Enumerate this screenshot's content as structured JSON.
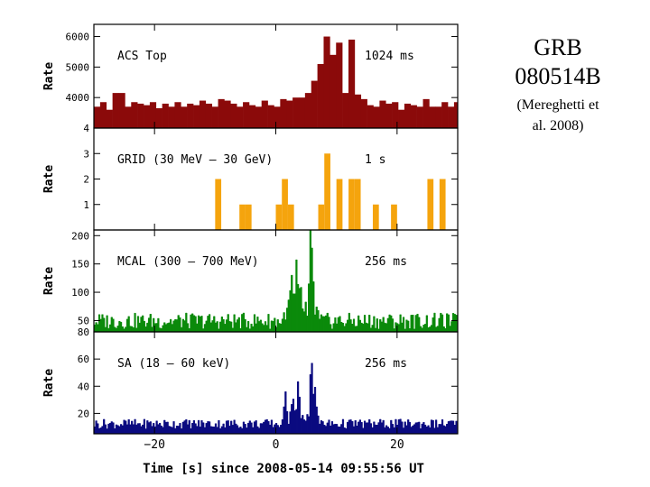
{
  "side_title": {
    "grb_line1": "GRB",
    "grb_line2": "080514B",
    "ref_line1": "(Mereghetti et",
    "ref_line2": "al. 2008)"
  },
  "chart_data": {
    "type": "bar",
    "x_axis": {
      "label": "Time [s] since 2008-05-14 09:55:56 UT",
      "range": [
        -30,
        30
      ],
      "ticks": [
        -20,
        0,
        20
      ],
      "tick_labels": [
        "−20",
        "0",
        "20"
      ]
    },
    "panels": [
      {
        "id": "acs",
        "label": "ACS Top",
        "binning": "1024 ms",
        "ylabel": "Rate",
        "ylim": [
          3000,
          6400
        ],
        "ticks": [
          4000,
          5000,
          6000
        ],
        "tick_labels": [
          "4000",
          "5000",
          "6000"
        ],
        "color": "#8b0a0a",
        "series": {
          "bin_width": 1.024,
          "x_start": -30,
          "values": [
            3700,
            3850,
            3600,
            4150,
            4150,
            3700,
            3850,
            3800,
            3750,
            3850,
            3650,
            3800,
            3700,
            3850,
            3700,
            3800,
            3750,
            3900,
            3800,
            3700,
            3950,
            3900,
            3800,
            3700,
            3850,
            3750,
            3700,
            3900,
            3750,
            3700,
            3950,
            3900,
            4000,
            4000,
            4150,
            4550,
            5100,
            6000,
            5400,
            5800,
            4150,
            5900,
            4100,
            3950,
            3750,
            3700,
            3900,
            3800,
            3850,
            3600,
            3800,
            3750,
            3700,
            3950,
            3700,
            3700,
            3850,
            3700,
            3850
          ]
        }
      },
      {
        "id": "grid",
        "label": "GRID (30 MeV – 30 GeV)",
        "binning": "1 s",
        "ylabel": "Rate",
        "ylim": [
          0,
          4
        ],
        "ticks": [
          1,
          2,
          3,
          4
        ],
        "tick_labels": [
          "1",
          "2",
          "3",
          "4"
        ],
        "color": "#f5a40d",
        "series": {
          "bin_width": 1.0,
          "bins": [
            {
              "x": -10,
              "value": 2
            },
            {
              "x": -6,
              "value": 1
            },
            {
              "x": -5,
              "value": 1
            },
            {
              "x": 0,
              "value": 1
            },
            {
              "x": 1,
              "value": 2
            },
            {
              "x": 2,
              "value": 1
            },
            {
              "x": 7,
              "value": 1
            },
            {
              "x": 8,
              "value": 3
            },
            {
              "x": 10,
              "value": 2
            },
            {
              "x": 12,
              "value": 2
            },
            {
              "x": 13,
              "value": 2
            },
            {
              "x": 16,
              "value": 1
            },
            {
              "x": 19,
              "value": 1
            },
            {
              "x": 25,
              "value": 2
            },
            {
              "x": 27,
              "value": 2
            }
          ]
        }
      },
      {
        "id": "mcal",
        "label": "MCAL (300 – 700 MeV)",
        "binning": "256 ms",
        "ylabel": "Rate",
        "ylim": [
          30,
          210
        ],
        "ticks": [
          50,
          100,
          150,
          200
        ],
        "tick_labels": [
          "50",
          "100",
          "150",
          "200"
        ],
        "color": "#0b8a0b",
        "series": {
          "bin_width": 0.256,
          "x_start": -30,
          "background": 48,
          "peaks": [
            {
              "t": 2.5,
              "value": 150
            },
            {
              "t": 3.3,
              "value": 160
            },
            {
              "t": 4.0,
              "value": 130
            },
            {
              "t": 5.6,
              "value": 190
            },
            {
              "t": 5.9,
              "value": 165
            }
          ]
        }
      },
      {
        "id": "sa",
        "label": "SA (18 – 60 keV)",
        "binning": "256 ms",
        "ylabel": "Rate",
        "ylim": [
          5,
          80
        ],
        "ticks": [
          20,
          40,
          60,
          80
        ],
        "tick_labels": [
          "20",
          "40",
          "60",
          "80"
        ],
        "color": "#0b0b80",
        "series": {
          "bin_width": 0.256,
          "x_start": -30,
          "background": 12,
          "peaks": [
            {
              "t": 1.5,
              "value": 38
            },
            {
              "t": 2.6,
              "value": 42
            },
            {
              "t": 3.6,
              "value": 52
            },
            {
              "t": 5.7,
              "value": 76
            },
            {
              "t": 6.3,
              "value": 48
            }
          ]
        }
      }
    ]
  }
}
